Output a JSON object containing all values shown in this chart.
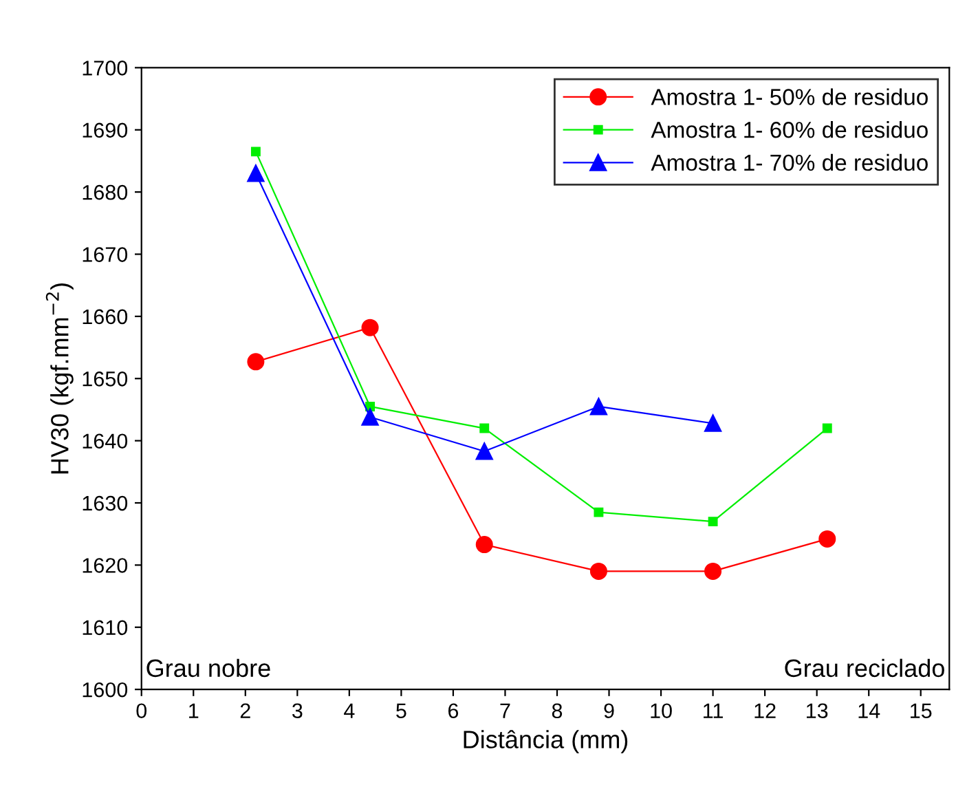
{
  "chart_data": {
    "type": "line",
    "xlabel": "Distância (mm)",
    "ylabel": "HV30 (kgf.mm$^{−2}$)",
    "xlim": [
      0,
      15.55
    ],
    "xticks": [
      0,
      1,
      2,
      3,
      4,
      5,
      6,
      7,
      8,
      9,
      10,
      11,
      12,
      13,
      14,
      15
    ],
    "ylim": [
      1600,
      1700
    ],
    "yticks": [
      1600,
      1610,
      1620,
      1630,
      1640,
      1650,
      1660,
      1670,
      1680,
      1690,
      1700
    ],
    "grid": false,
    "legend": "top right",
    "annotations": [
      "Grau nobre",
      "Grau reciclado"
    ],
    "series": [
      {
        "name": "Amostra 1- 50% de residuo",
        "color": "#ff0000",
        "marker": "circle",
        "x": [
          2.2,
          4.4,
          6.6,
          8.8,
          11.0,
          13.2
        ],
        "values": [
          1652.7,
          1658.2,
          1623.3,
          1619,
          1619,
          1624.2
        ]
      },
      {
        "name": "Amostra 1- 60% de residuo",
        "color": "#00ee00",
        "marker": "square",
        "x": [
          2.2,
          4.4,
          6.6,
          8.8,
          11.0,
          13.2
        ],
        "values": [
          1686.5,
          1645.5,
          1642,
          1628.5,
          1627,
          1642
        ]
      },
      {
        "name": "Amostra 1- 70% de residuo",
        "color": "#0000ff",
        "marker": "triangle",
        "x": [
          2.2,
          4.4,
          6.6,
          8.8,
          11.0
        ],
        "values": [
          1683,
          1643.8,
          1638.3,
          1645.5,
          1642.8
        ]
      }
    ]
  }
}
